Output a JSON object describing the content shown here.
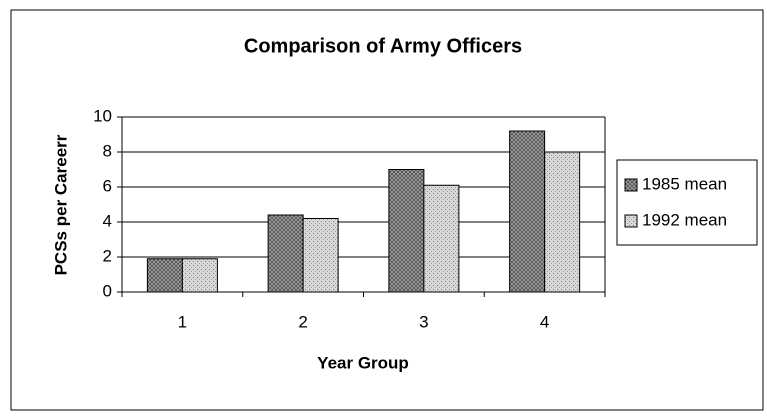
{
  "chart_data": {
    "type": "bar",
    "title": "Comparison of Army Officers",
    "x_label": "Year Group",
    "y_label": "PCSs per Careerr",
    "categories": [
      "1",
      "2",
      "3",
      "4"
    ],
    "series": [
      {
        "name": "1985 mean",
        "color": "#555555",
        "values": [
          1.9,
          4.4,
          7.0,
          9.2
        ]
      },
      {
        "name": "1992 mean",
        "color": "#d8d8d8",
        "values": [
          1.9,
          4.2,
          6.1,
          8.0
        ]
      }
    ],
    "ylim": [
      0,
      10
    ],
    "yticks": [
      0,
      2,
      4,
      6,
      8,
      10
    ],
    "grid": true,
    "legend": "right"
  }
}
